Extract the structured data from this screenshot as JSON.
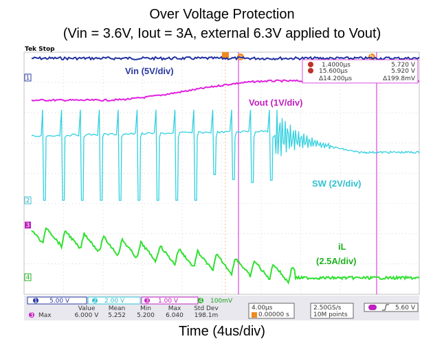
{
  "header": {
    "title": "Over Voltage Protection",
    "subtitle": "(Vin = 3.6V, Iout = 3A, external 6.3V applied to Vout)"
  },
  "scope": {
    "status": "Tek Stop",
    "channel_ids": [
      "1",
      "2",
      "3",
      "4"
    ],
    "cursor_ids": [
      "a",
      "b"
    ],
    "cursors": {
      "a_time": "1.4000µs",
      "a_value": "5.720 V",
      "b_time": "15.600µs",
      "b_value": "5.920 V",
      "delta_time": "Δ14.200µs",
      "delta_value": "Δ199.8mV"
    },
    "traces": [
      "Vin (5V/div)",
      "Vout (1V/div)",
      "SW (2V/div)",
      "iL",
      "(2.5A/div)"
    ],
    "scales": [
      "5.00 V",
      "2.00 V",
      "1.00 V",
      "100mV"
    ],
    "timebase": "4.00µs",
    "position": "0.00000 s",
    "sample_rate": "2.50GS/s",
    "record": "10M points",
    "trigger_level": "5.60 V",
    "measurement": {
      "headers": [
        "Value",
        "Mean",
        "Min",
        "Max",
        "Std Dev"
      ],
      "name": "Max",
      "values": [
        "6.000 V",
        "5.252",
        "5.200",
        "6.040",
        "198.1m"
      ]
    }
  },
  "footer": {
    "xlabel": "Time (4us/div)"
  }
}
